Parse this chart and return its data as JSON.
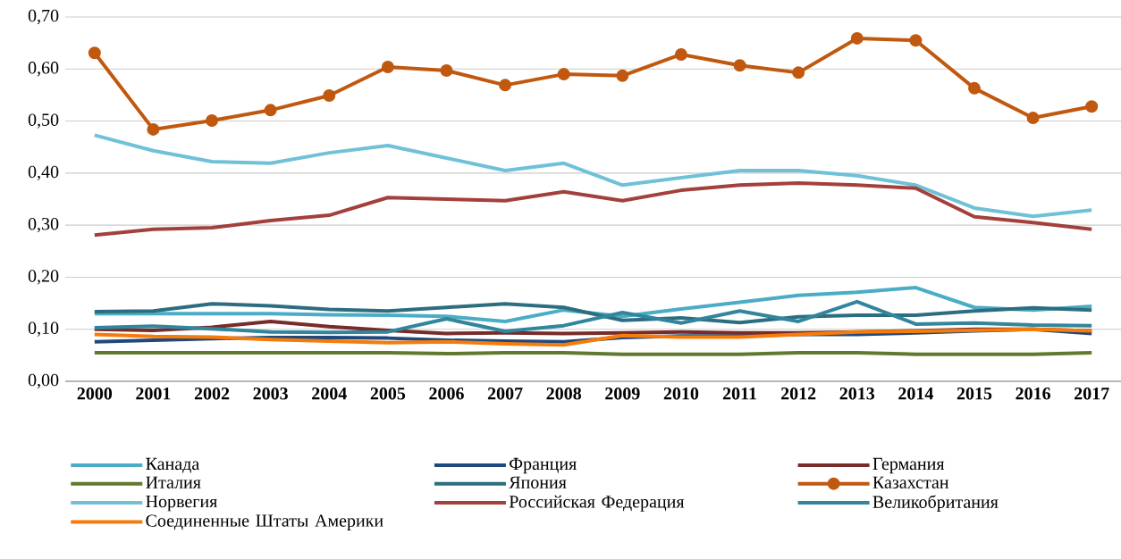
{
  "chart_data": {
    "type": "line",
    "categories": [
      "2000",
      "2001",
      "2002",
      "2003",
      "2004",
      "2005",
      "2006",
      "2007",
      "2008",
      "2009",
      "2010",
      "2011",
      "2012",
      "2013",
      "2014",
      "2015",
      "2016",
      "2017"
    ],
    "ylim": [
      0,
      0.7
    ],
    "yticks": [
      {
        "value": 0,
        "label": "0,00"
      },
      {
        "value": 0.1,
        "label": "0,10"
      },
      {
        "value": 0.2,
        "label": "0,20"
      },
      {
        "value": 0.3,
        "label": "0,30"
      },
      {
        "value": 0.4,
        "label": "0,40"
      },
      {
        "value": 0.5,
        "label": "0,50"
      },
      {
        "value": 0.6,
        "label": "0,60"
      },
      {
        "value": 0.7,
        "label": "0,70"
      }
    ],
    "grid": "y",
    "legend": "bottom",
    "marker": "none",
    "line_style": "solid",
    "series": [
      {
        "name": "Канада",
        "color": "#4bacc6",
        "values": [
          0.13,
          0.13,
          0.13,
          0.13,
          0.128,
          0.127,
          0.125,
          0.115,
          0.137,
          0.125,
          0.139,
          0.152,
          0.165,
          0.171,
          0.18,
          0.142,
          0.137,
          0.144
        ]
      },
      {
        "name": "Франция",
        "color": "#1f497d",
        "values": [
          0.076,
          0.079,
          0.082,
          0.084,
          0.084,
          0.083,
          0.079,
          0.077,
          0.076,
          0.084,
          0.087,
          0.087,
          0.09,
          0.09,
          0.093,
          0.097,
          0.1,
          0.092
        ]
      },
      {
        "name": "Германия",
        "color": "#772c2a",
        "values": [
          0.1,
          0.098,
          0.104,
          0.115,
          0.105,
          0.098,
          0.092,
          0.093,
          0.092,
          0.093,
          0.095,
          0.093,
          0.093,
          0.095,
          0.097,
          0.1,
          0.1,
          0.097
        ]
      },
      {
        "name": "Италия",
        "color": "#5f7a2e",
        "values": [
          0.055,
          0.055,
          0.055,
          0.055,
          0.055,
          0.055,
          0.053,
          0.055,
          0.055,
          0.052,
          0.052,
          0.052,
          0.055,
          0.055,
          0.052,
          0.052,
          0.052,
          0.055
        ]
      },
      {
        "name": "Япония",
        "color": "#2c6e7f",
        "values": [
          0.134,
          0.135,
          0.149,
          0.145,
          0.138,
          0.135,
          0.142,
          0.149,
          0.142,
          0.117,
          0.122,
          0.113,
          0.124,
          0.127,
          0.127,
          0.135,
          0.141,
          0.137
        ]
      },
      {
        "name": "Казахстан",
        "color": "#c0580f",
        "marker": "circle",
        "values": [
          0.631,
          0.484,
          0.501,
          0.521,
          0.549,
          0.604,
          0.597,
          0.569,
          0.59,
          0.587,
          0.628,
          0.607,
          0.593,
          0.659,
          0.655,
          0.563,
          0.506,
          0.528
        ]
      },
      {
        "name": "Норвегия",
        "color": "#70c1d8",
        "values": [
          0.473,
          0.443,
          0.422,
          0.419,
          0.439,
          0.453,
          0.429,
          0.405,
          0.419,
          0.377,
          0.391,
          0.405,
          0.405,
          0.395,
          0.377,
          0.333,
          0.317,
          0.329
        ]
      },
      {
        "name": "Российская Федерация",
        "color": "#a4403c",
        "values": [
          0.281,
          0.292,
          0.295,
          0.309,
          0.319,
          0.353,
          0.35,
          0.347,
          0.364,
          0.347,
          0.367,
          0.377,
          0.381,
          0.377,
          0.371,
          0.316,
          0.305,
          0.292
        ]
      },
      {
        "name": "Великобритания",
        "color": "#31859c",
        "values": [
          0.103,
          0.106,
          0.101,
          0.095,
          0.094,
          0.095,
          0.12,
          0.096,
          0.107,
          0.132,
          0.112,
          0.135,
          0.115,
          0.153,
          0.11,
          0.112,
          0.108,
          0.107
        ]
      },
      {
        "name": "Соединенные Штаты Америки",
        "color": "#f57c0a",
        "values": [
          0.09,
          0.086,
          0.085,
          0.08,
          0.077,
          0.074,
          0.076,
          0.072,
          0.07,
          0.088,
          0.085,
          0.085,
          0.09,
          0.095,
          0.096,
          0.098,
          0.1,
          0.097
        ]
      }
    ]
  }
}
